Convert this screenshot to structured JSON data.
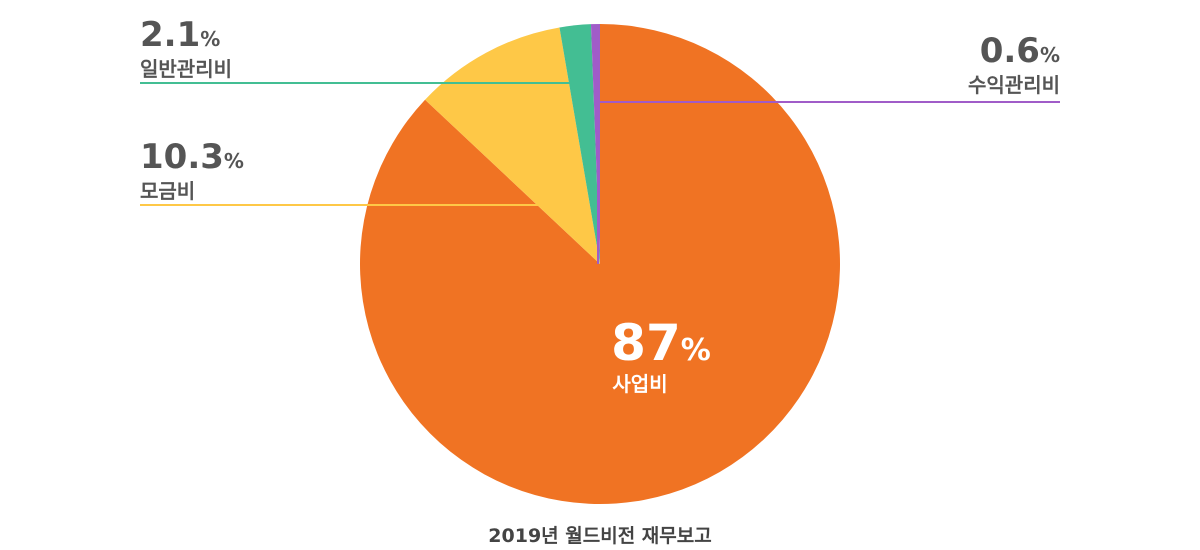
{
  "chart_data": {
    "type": "pie",
    "title": "2019년 월드비전 재무보고",
    "slices": [
      {
        "label": "사업비",
        "value": 87,
        "display": "87",
        "color": "#F07323"
      },
      {
        "label": "모금비",
        "value": 10.3,
        "display": "10.3",
        "color": "#FEC847"
      },
      {
        "label": "일반관리비",
        "value": 2.1,
        "display": "2.1",
        "color": "#43BE93"
      },
      {
        "label": "수익관리비",
        "value": 0.6,
        "display": "0.6",
        "color": "#A05CC8"
      }
    ],
    "percent_symbol": "%"
  }
}
